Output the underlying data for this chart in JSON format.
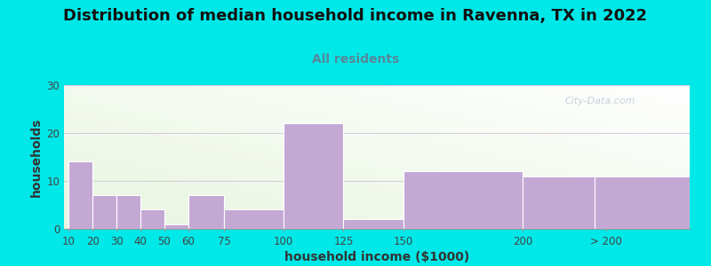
{
  "title": "Distribution of median household income in Ravenna, TX in 2022",
  "subtitle": "All residents",
  "xlabel": "household income ($1000)",
  "ylabel": "households",
  "bar_labels": [
    "10",
    "20",
    "30",
    "40",
    "50",
    "60",
    "75",
    "100",
    "125",
    "150",
    "200",
    "> 200"
  ],
  "bar_heights": [
    14,
    7,
    7,
    4,
    1,
    7,
    4,
    22,
    2,
    12,
    11,
    11
  ],
  "bar_color": "#c4a8d4",
  "ylim": [
    0,
    30
  ],
  "yticks": [
    0,
    10,
    20,
    30
  ],
  "background_color": "#00e8e8",
  "title_fontsize": 13,
  "title_color": "#111111",
  "subtitle_fontsize": 10,
  "subtitle_color": "#558899",
  "watermark": "City-Data.com",
  "xlabel_fontsize": 10,
  "ylabel_fontsize": 10,
  "tick_fontsize": 8.5,
  "bar_positions": [
    10,
    20,
    30,
    40,
    50,
    60,
    75,
    100,
    125,
    150,
    200,
    230
  ],
  "bar_widths": [
    10,
    10,
    10,
    10,
    10,
    15,
    25,
    25,
    25,
    50,
    30,
    40
  ],
  "xlim_left": 8,
  "xlim_right": 270,
  "tick_positions": [
    10,
    20,
    30,
    40,
    50,
    60,
    75,
    100,
    125,
    150,
    200,
    235
  ]
}
